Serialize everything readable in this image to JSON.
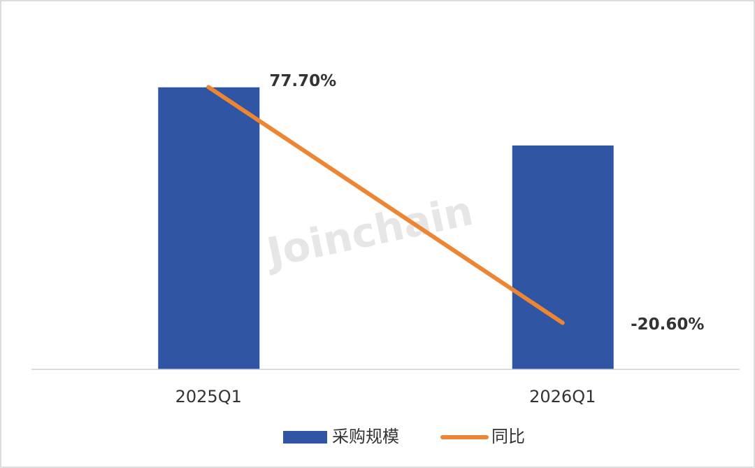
{
  "chart_data": {
    "type": "bar_line",
    "watermark": "Joinchain",
    "categories": [
      "2025Q1",
      "2026Q1"
    ],
    "ylim": [
      0,
      100
    ],
    "y2lim": [
      -40,
      107
    ],
    "series": [
      {
        "name": "采购规模",
        "type": "bar",
        "color": "#2f55a4",
        "values": [
          80,
          63.5
        ]
      },
      {
        "name": "同比",
        "type": "line",
        "axis": "y2",
        "color": "#ed8532",
        "values": [
          77.7,
          -20.6
        ],
        "value_labels": [
          "77.70%",
          "-20.60%"
        ]
      }
    ],
    "legend": "bottom"
  }
}
